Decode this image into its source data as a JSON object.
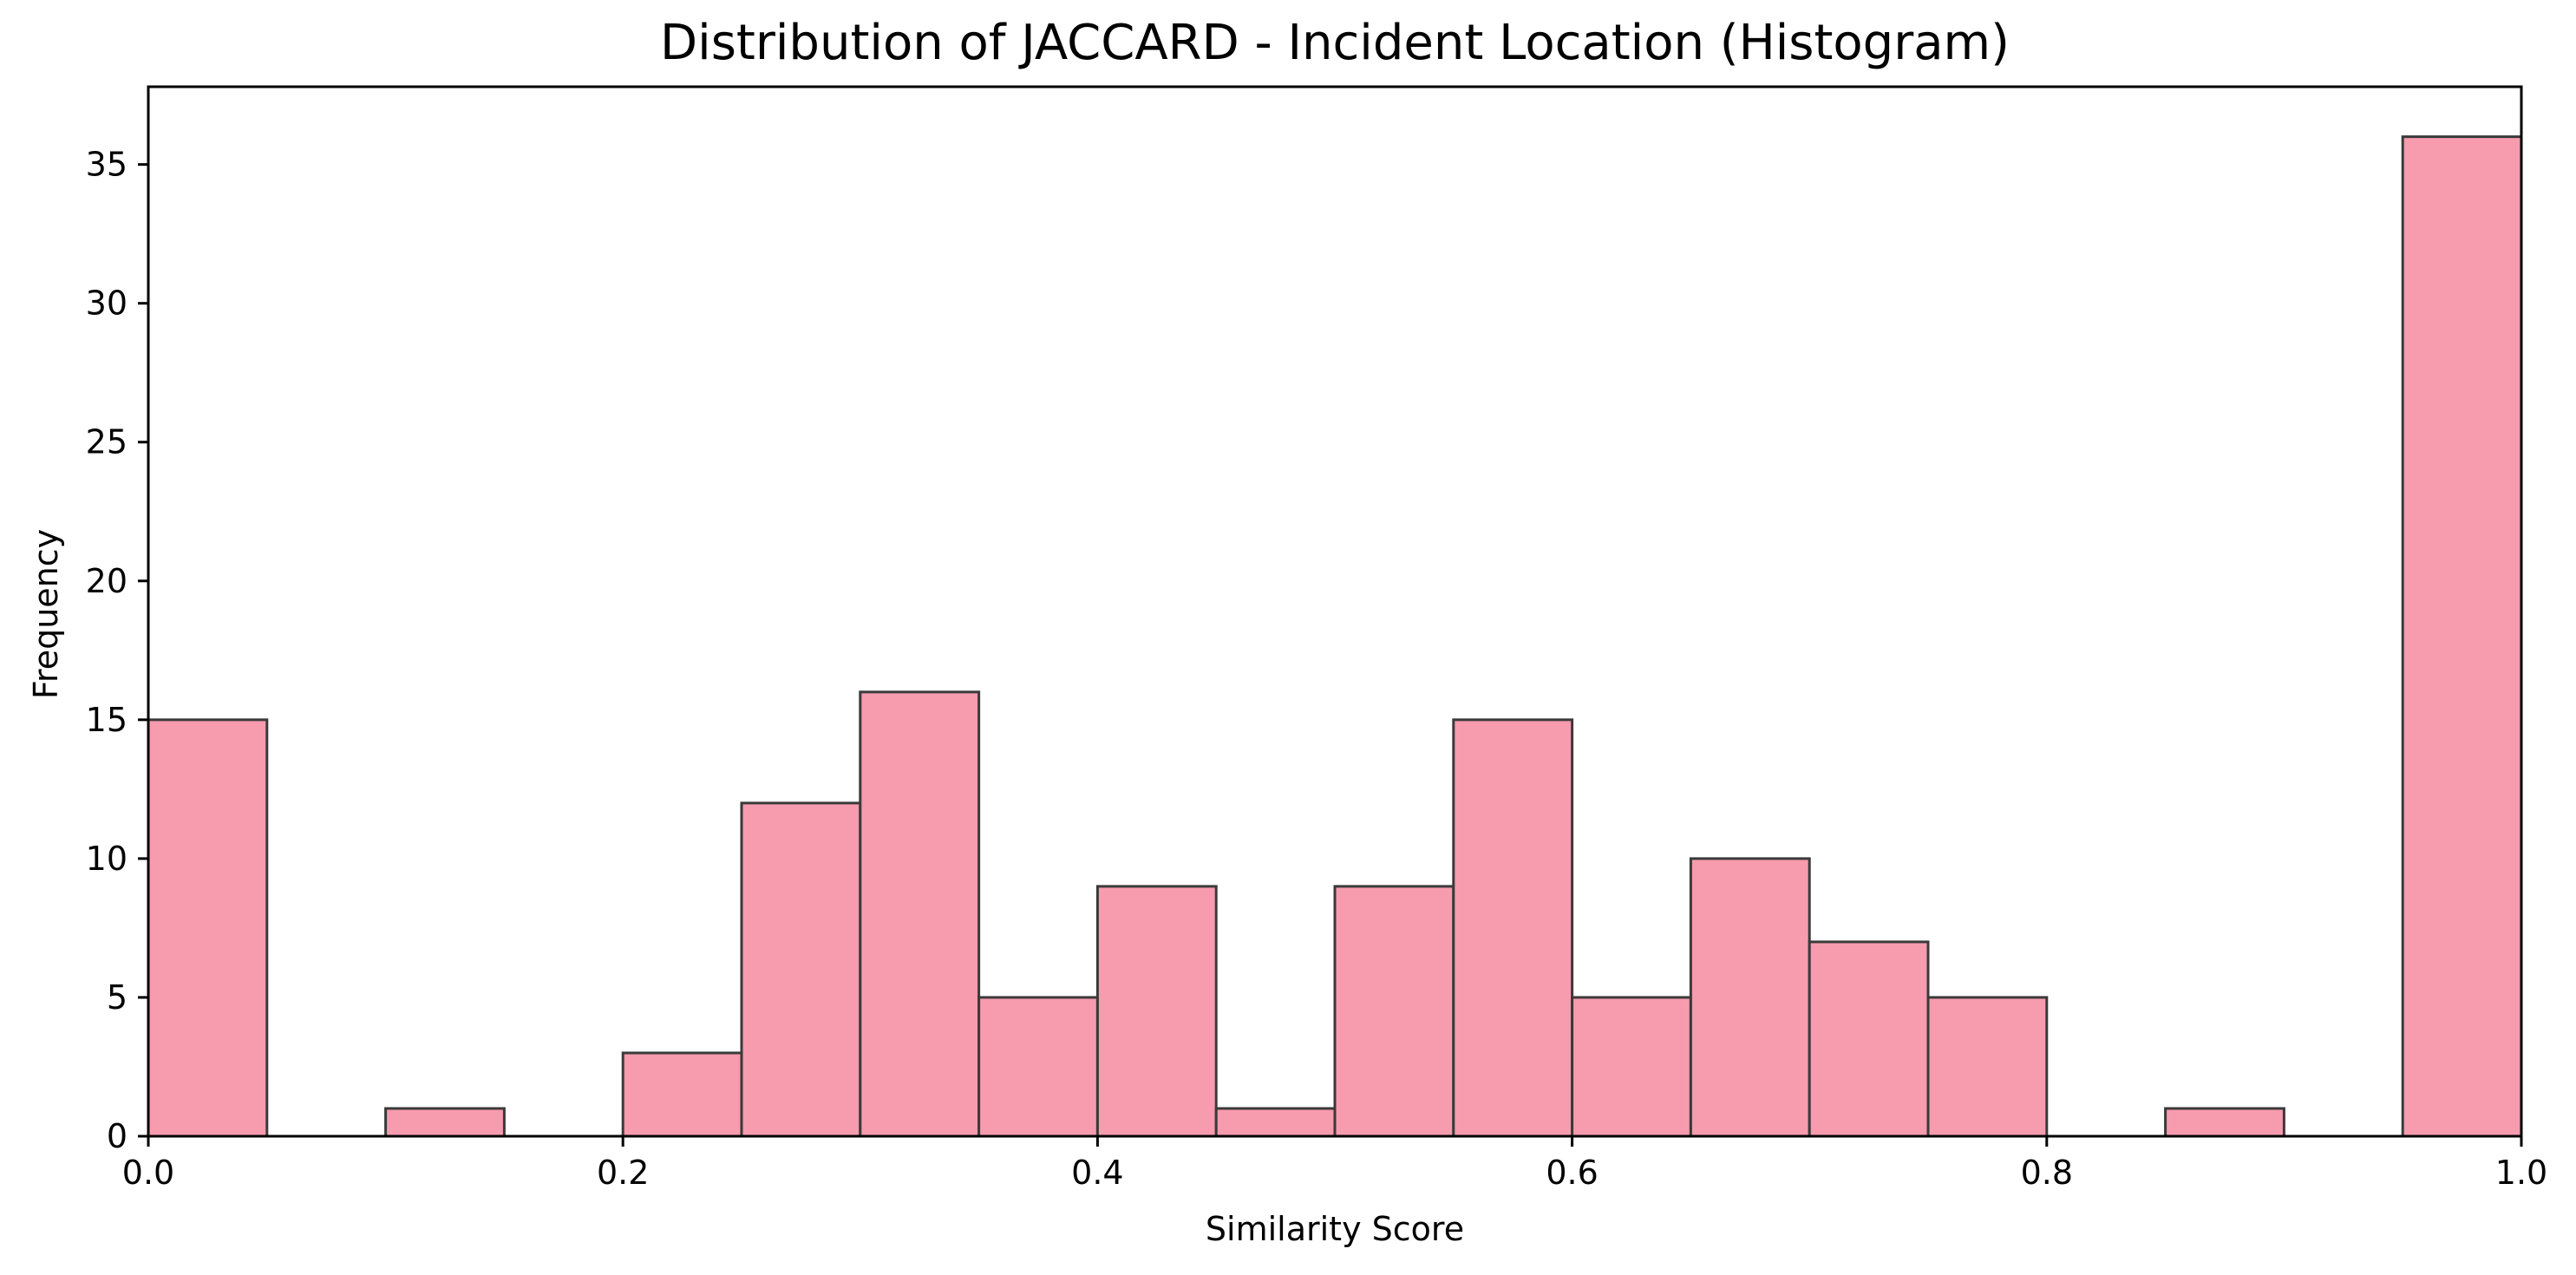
{
  "chart_data": {
    "type": "bar",
    "title": "Distribution of JACCARD - Incident Location (Histogram)",
    "xlabel": "Similarity Score",
    "ylabel": "Frequency",
    "xlim": [
      0.0,
      1.0
    ],
    "ylim": [
      0,
      37.8
    ],
    "bin_width": 0.05,
    "bins": [
      {
        "x0": 0.0,
        "x1": 0.05,
        "count": 15
      },
      {
        "x0": 0.05,
        "x1": 0.1,
        "count": 0
      },
      {
        "x0": 0.1,
        "x1": 0.15,
        "count": 1
      },
      {
        "x0": 0.15,
        "x1": 0.2,
        "count": 0
      },
      {
        "x0": 0.2,
        "x1": 0.25,
        "count": 3
      },
      {
        "x0": 0.25,
        "x1": 0.3,
        "count": 12
      },
      {
        "x0": 0.3,
        "x1": 0.35,
        "count": 16
      },
      {
        "x0": 0.35,
        "x1": 0.4,
        "count": 5
      },
      {
        "x0": 0.4,
        "x1": 0.45,
        "count": 9
      },
      {
        "x0": 0.45,
        "x1": 0.5,
        "count": 1
      },
      {
        "x0": 0.5,
        "x1": 0.55,
        "count": 9
      },
      {
        "x0": 0.55,
        "x1": 0.6,
        "count": 15
      },
      {
        "x0": 0.6,
        "x1": 0.65,
        "count": 5
      },
      {
        "x0": 0.65,
        "x1": 0.7,
        "count": 10
      },
      {
        "x0": 0.7,
        "x1": 0.75,
        "count": 7
      },
      {
        "x0": 0.75,
        "x1": 0.8,
        "count": 5
      },
      {
        "x0": 0.8,
        "x1": 0.85,
        "count": 0
      },
      {
        "x0": 0.85,
        "x1": 0.9,
        "count": 1
      },
      {
        "x0": 0.9,
        "x1": 0.95,
        "count": 0
      },
      {
        "x0": 0.95,
        "x1": 1.0,
        "count": 36
      }
    ],
    "xticks": [
      0.0,
      0.2,
      0.4,
      0.6,
      0.8,
      1.0
    ],
    "xtick_labels": [
      "0.0",
      "0.2",
      "0.4",
      "0.6",
      "0.8",
      "1.0"
    ],
    "yticks": [
      0,
      5,
      10,
      15,
      20,
      25,
      30,
      35
    ],
    "ytick_labels": [
      "0",
      "5",
      "10",
      "15",
      "20",
      "25",
      "30",
      "35"
    ],
    "grid": false,
    "legend": "none",
    "colors": {
      "bar_fill": "#f79bae",
      "bar_edge": "#3a3a3a",
      "axis": "#000000"
    }
  }
}
